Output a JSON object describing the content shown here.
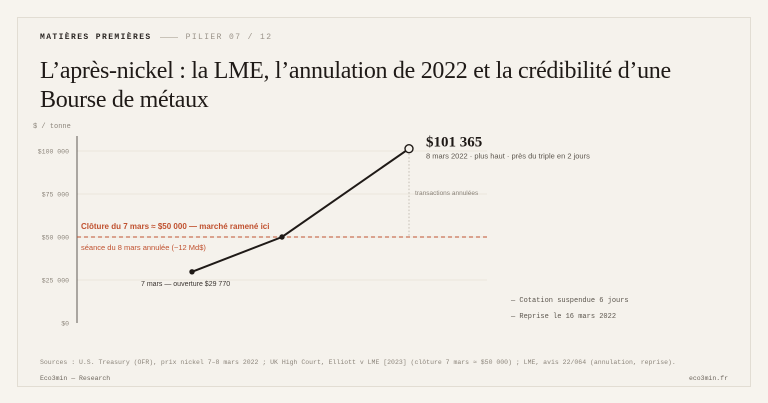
{
  "kicker": {
    "section": "MATIÈRES PREMIÈRES",
    "pillar": "PILIER 07 / 12"
  },
  "title": "L’après-nickel : la LME, l’annulation de 2022 et la crédibilité d’une Bourse de métaux",
  "chart_data": {
    "type": "line",
    "yunit": "$ / tonne",
    "ylim": [
      0,
      100000
    ],
    "yticks": [
      "$0",
      "$25 000",
      "$50 000",
      "$75 000",
      "$100 000"
    ],
    "series": [
      {
        "values": [
          29770,
          50000,
          101365
        ]
      }
    ],
    "threshold": {
      "value": 50000,
      "label_top": "Clôture du 7 mars ≈ $50 000 — marché ramené ici",
      "label_bottom": "séance du 8 mars annulée (~12 Md$)"
    },
    "peak": {
      "value_label": "$101 365",
      "note": "8 mars 2022 · plus haut · près du triple en 2 jours"
    },
    "start_label": "7 mars — ouverture $29 770",
    "vertical_note": "transactions annulées",
    "colors": {
      "line": "#1f1a17",
      "threshold": "#c0512f",
      "grid": "#e6e1d8"
    }
  },
  "legend": [
    "— Cotation suspendue 6 jours",
    "— Reprise le 16 mars 2022"
  ],
  "sources": "Sources : U.S. Treasury (OFR), prix nickel 7–8 mars 2022 ; UK High Court, Elliott v LME [2023] (clôture 7 mars ≈ $50 000) ; LME, avis 22/064 (annulation, reprise).",
  "footer": {
    "left": "Eco3min — Research",
    "right": "eco3min.fr"
  }
}
